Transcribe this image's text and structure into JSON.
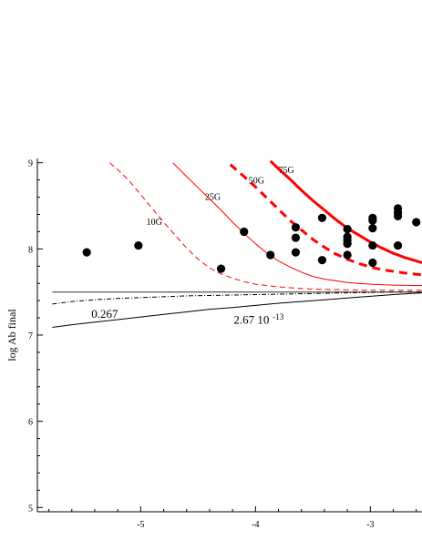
{
  "chart_data": {
    "type": "scatter",
    "title": "",
    "xlabel": "",
    "ylabel": "log Ab final",
    "xlim": [
      -5.9,
      -2.55
    ],
    "ylim": [
      4.95,
      9.05
    ],
    "xticks": [
      -5,
      -4,
      -3
    ],
    "xtick_labels": [
      "-5",
      "-4",
      "-3"
    ],
    "yticks": [
      5,
      6,
      7,
      8,
      9
    ],
    "ytick_labels": [
      "5",
      "6",
      "7",
      "8",
      "9"
    ],
    "grid": false,
    "legend": "none",
    "points": [
      {
        "x": -5.47,
        "y": 7.96
      },
      {
        "x": -5.02,
        "y": 8.04
      },
      {
        "x": -4.3,
        "y": 7.77
      },
      {
        "x": -4.1,
        "y": 8.2
      },
      {
        "x": -3.87,
        "y": 7.93
      },
      {
        "x": -3.65,
        "y": 7.96
      },
      {
        "x": -3.65,
        "y": 8.13
      },
      {
        "x": -3.65,
        "y": 8.25
      },
      {
        "x": -3.42,
        "y": 7.87
      },
      {
        "x": -3.42,
        "y": 8.36
      },
      {
        "x": -3.2,
        "y": 7.93
      },
      {
        "x": -3.2,
        "y": 8.06
      },
      {
        "x": -3.2,
        "y": 8.1
      },
      {
        "x": -3.2,
        "y": 8.14
      },
      {
        "x": -3.2,
        "y": 8.23
      },
      {
        "x": -2.98,
        "y": 7.84
      },
      {
        "x": -2.98,
        "y": 8.04
      },
      {
        "x": -2.98,
        "y": 8.24
      },
      {
        "x": -2.98,
        "y": 8.33
      },
      {
        "x": -2.98,
        "y": 8.36
      },
      {
        "x": -2.76,
        "y": 8.04
      },
      {
        "x": -2.76,
        "y": 8.38
      },
      {
        "x": -2.76,
        "y": 8.42
      },
      {
        "x": -2.76,
        "y": 8.47
      },
      {
        "x": -2.6,
        "y": 8.31
      }
    ],
    "series": [
      {
        "name": "10G",
        "color": "#ff0000",
        "style": "dashed",
        "x": [
          -5.27,
          -5.2,
          -5.1,
          -5.0,
          -4.9,
          -4.8,
          -4.7,
          -4.6,
          -4.5,
          -4.4,
          -4.3,
          -4.2,
          -4.1,
          -4.0,
          -3.8,
          -3.6,
          -3.4,
          -3.2,
          -3.0,
          -2.8,
          -2.55
        ],
        "y": [
          9.0,
          8.92,
          8.79,
          8.63,
          8.47,
          8.31,
          8.16,
          8.01,
          7.88,
          7.78,
          7.71,
          7.66,
          7.62,
          7.59,
          7.56,
          7.54,
          7.53,
          7.525,
          7.52,
          7.52,
          7.52
        ]
      },
      {
        "name": "25G",
        "color": "#ff0000",
        "style": "solid",
        "x": [
          -4.72,
          -4.6,
          -4.5,
          -4.4,
          -4.3,
          -4.2,
          -4.1,
          -4.0,
          -3.9,
          -3.8,
          -3.7,
          -3.6,
          -3.5,
          -3.4,
          -3.3,
          -3.2,
          -3.1,
          -3.0,
          -2.8,
          -2.55
        ],
        "y": [
          9.0,
          8.84,
          8.71,
          8.58,
          8.45,
          8.31,
          8.18,
          8.06,
          7.95,
          7.86,
          7.79,
          7.73,
          7.68,
          7.65,
          7.63,
          7.61,
          7.6,
          7.59,
          7.58,
          7.575
        ]
      },
      {
        "name": "50G",
        "color": "#ff0000",
        "style": "thick-dashed",
        "x": [
          -4.22,
          -4.1,
          -4.0,
          -3.9,
          -3.8,
          -3.7,
          -3.6,
          -3.5,
          -3.4,
          -3.3,
          -3.2,
          -3.1,
          -3.0,
          -2.9,
          -2.8,
          -2.7,
          -2.55
        ],
        "y": [
          8.98,
          8.84,
          8.72,
          8.59,
          8.46,
          8.33,
          8.22,
          8.11,
          8.02,
          7.94,
          7.88,
          7.83,
          7.79,
          7.76,
          7.74,
          7.72,
          7.7
        ]
      },
      {
        "name": "75G",
        "color": "#ff0000",
        "style": "thick-solid",
        "x": [
          -3.87,
          -3.8,
          -3.7,
          -3.6,
          -3.5,
          -3.4,
          -3.3,
          -3.2,
          -3.1,
          -3.0,
          -2.9,
          -2.8,
          -2.7,
          -2.6,
          -2.55
        ],
        "y": [
          9.02,
          8.93,
          8.81,
          8.68,
          8.56,
          8.45,
          8.34,
          8.24,
          8.16,
          8.08,
          8.01,
          7.95,
          7.9,
          7.86,
          7.84
        ]
      },
      {
        "name": "",
        "color": "#000000",
        "style": "solid-gray",
        "x": [
          -5.77,
          -2.55
        ],
        "y": [
          7.5,
          7.5
        ]
      },
      {
        "name": "0.267",
        "color": "#000000",
        "style": "dash-dot",
        "x": [
          -5.77,
          -5.6,
          -5.4,
          -5.2,
          -5.0,
          -4.8,
          -4.6,
          -4.4,
          -4.2,
          -4.0,
          -3.8,
          -3.6,
          -3.4,
          -3.2,
          -3.0,
          -2.8,
          -2.55
        ],
        "y": [
          7.36,
          7.39,
          7.41,
          7.425,
          7.435,
          7.445,
          7.455,
          7.46,
          7.465,
          7.47,
          7.475,
          7.48,
          7.485,
          7.49,
          7.495,
          7.5,
          7.5
        ]
      },
      {
        "name": "2.67 10^-13",
        "color": "#000000",
        "style": "solid",
        "x": [
          -5.77,
          -5.6,
          -5.4,
          -5.2,
          -5.0,
          -4.8,
          -4.6,
          -4.4,
          -4.2,
          -4.0,
          -3.8,
          -3.6,
          -3.4,
          -3.2,
          -3.0,
          -2.8,
          -2.55
        ],
        "y": [
          7.09,
          7.12,
          7.15,
          7.18,
          7.21,
          7.24,
          7.27,
          7.3,
          7.32,
          7.345,
          7.37,
          7.39,
          7.41,
          7.43,
          7.45,
          7.47,
          7.49
        ]
      }
    ],
    "annotations": [
      {
        "id": "ann-10g",
        "text": "10G",
        "x": -4.95,
        "y": 8.28
      },
      {
        "id": "ann-25g",
        "text": "25G",
        "x": -4.44,
        "y": 8.57
      },
      {
        "id": "ann-50g",
        "text": "50G",
        "x": -4.06,
        "y": 8.76
      },
      {
        "id": "ann-75g",
        "text": "75G",
        "x": -3.8,
        "y": 8.88
      },
      {
        "id": "ann-0267",
        "text": "0.267",
        "x": -5.43,
        "y": 7.2
      },
      {
        "id": "ann-267-base",
        "text": "2.67 10",
        "x": -4.19,
        "y": 7.13
      },
      {
        "id": "ann-267-exp",
        "text": "-13",
        "x": -3.85,
        "y": 7.18
      }
    ]
  }
}
